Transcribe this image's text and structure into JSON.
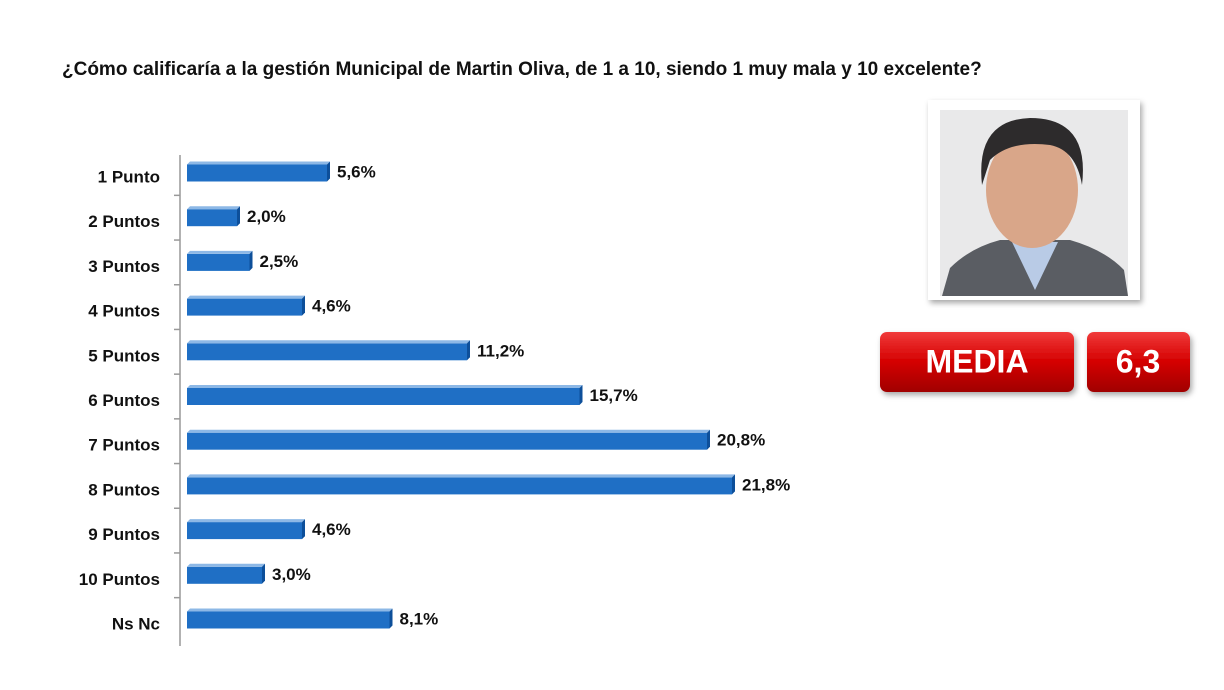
{
  "chart_data": {
    "type": "bar",
    "orientation": "horizontal",
    "title": "¿Cómo calificaría a la gestión Municipal de Martin Oliva, de 1 a 10, siendo 1 muy mala y 10 excelente?",
    "categories": [
      "1 Punto",
      "2 Puntos",
      "3 Puntos",
      "4 Puntos",
      "5 Puntos",
      "6 Puntos",
      "7 Puntos",
      "8 Puntos",
      "9 Puntos",
      "10 Puntos",
      "Ns Nc"
    ],
    "values": [
      5.6,
      2.0,
      2.5,
      4.6,
      11.2,
      15.7,
      20.8,
      21.8,
      4.6,
      3.0,
      8.1
    ],
    "value_labels": [
      "5,6%",
      "2,0%",
      "2,5%",
      "4,6%",
      "11,2%",
      "15,7%",
      "20,8%",
      "21,8%",
      "4,6%",
      "3,0%",
      "8,1%"
    ],
    "color": "#1f6fc5",
    "summary": {
      "label": "MEDIA",
      "value": "6,3"
    }
  }
}
